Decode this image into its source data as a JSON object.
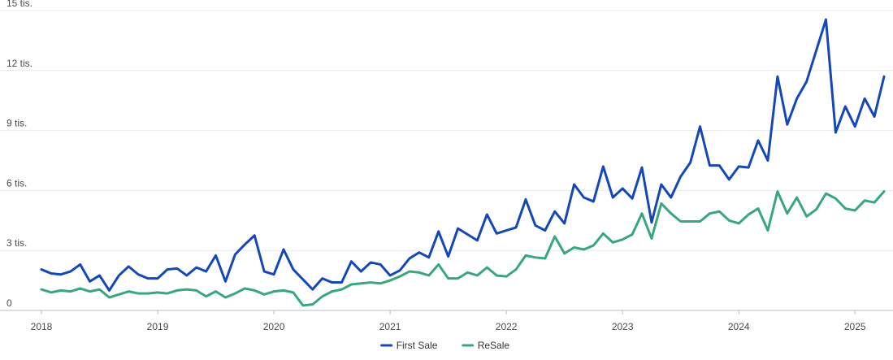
{
  "chart_data": {
    "type": "line",
    "title": "",
    "xlabel": "",
    "ylabel": "",
    "x_start": "2018-01",
    "x_end": "2025-04",
    "xlim": [
      "2018-01",
      "2025-04"
    ],
    "ylim": [
      0,
      15000
    ],
    "y_ticks": [
      0,
      3000,
      6000,
      9000,
      12000,
      15000
    ],
    "y_tick_labels": [
      "0",
      "3 tis.",
      "6 tis.",
      "9 tis.",
      "12 tis.",
      "15 tis."
    ],
    "x_ticks": [
      "2018-01",
      "2019-01",
      "2020-01",
      "2021-01",
      "2022-01",
      "2023-01",
      "2024-01",
      "2025-01"
    ],
    "x_tick_labels": [
      "2018",
      "2019",
      "2020",
      "2021",
      "2022",
      "2023",
      "2024",
      "2025"
    ],
    "grid": true,
    "legend_position": "bottom-center",
    "series": [
      {
        "name": "First Sale",
        "color": "#1447b8",
        "values": [
          2050,
          1850,
          1800,
          1950,
          2300,
          1450,
          1750,
          1000,
          1750,
          2200,
          1800,
          1600,
          1600,
          2050,
          2100,
          1750,
          2150,
          1950,
          2750,
          1450,
          2800,
          3300,
          3750,
          1950,
          1800,
          3050,
          2050,
          1550,
          1050,
          1600,
          1400,
          1400,
          2450,
          1950,
          2400,
          2300,
          1750,
          2000,
          2600,
          2900,
          2650,
          3950,
          2700,
          4100,
          3800,
          3500,
          4800,
          3850,
          4000,
          4150,
          5550,
          4250,
          4000,
          4950,
          4350,
          6300,
          5650,
          5450,
          7200,
          5650,
          6100,
          5600,
          7150,
          4400,
          6300,
          5650,
          6700,
          7400,
          9200,
          7250,
          7250,
          6550,
          7200,
          7150,
          8500,
          7500,
          11700,
          9300,
          10600,
          11450,
          13000,
          14550,
          8900,
          10200,
          9200,
          10600,
          9700,
          11700
        ]
      },
      {
        "name": "ReSale",
        "color": "#3aa67e",
        "values": [
          1050,
          900,
          1000,
          950,
          1100,
          950,
          1050,
          650,
          800,
          950,
          850,
          850,
          900,
          850,
          1000,
          1050,
          1000,
          700,
          950,
          650,
          850,
          1100,
          1000,
          800,
          950,
          1000,
          900,
          250,
          300,
          700,
          950,
          1050,
          1300,
          1350,
          1400,
          1350,
          1500,
          1700,
          1950,
          1900,
          1750,
          2300,
          1600,
          1600,
          1900,
          1750,
          2150,
          1750,
          1700,
          2050,
          2750,
          2650,
          2600,
          3700,
          2850,
          3150,
          3050,
          3250,
          3850,
          3400,
          3550,
          3800,
          4850,
          3600,
          5350,
          4850,
          4450,
          4450,
          4450,
          4850,
          4950,
          4500,
          4350,
          4800,
          5100,
          4000,
          5950,
          4850,
          5650,
          4700,
          5050,
          5850,
          5600,
          5100,
          5000,
          5500,
          5400,
          5950
        ]
      }
    ]
  }
}
